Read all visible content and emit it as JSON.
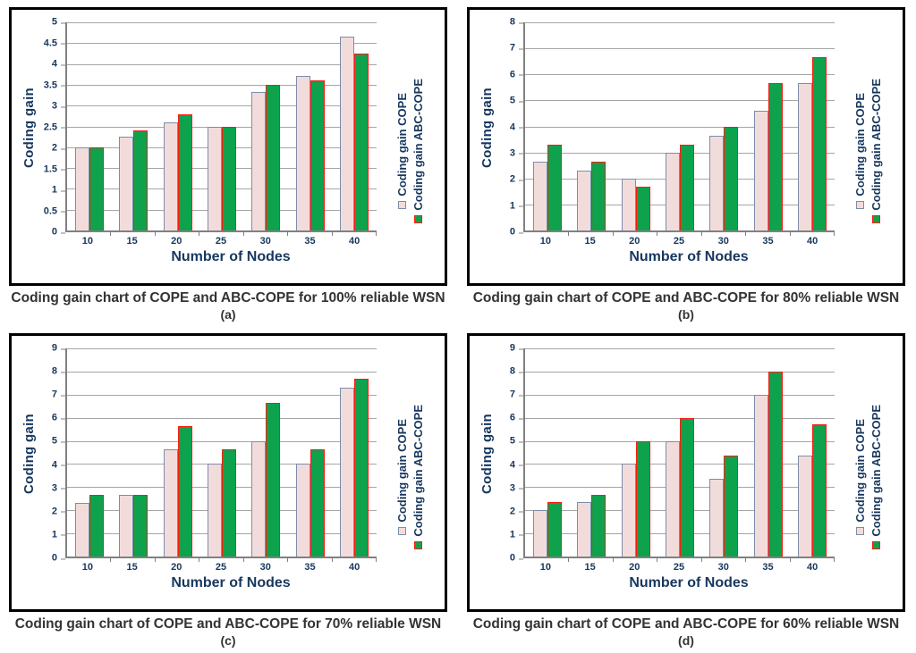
{
  "palette": {
    "axis_text": "#17375e",
    "caption_text": "#333333",
    "gridline": "#a6a6a6",
    "axis_line": "#808080",
    "panel_border": "#000000",
    "cope_fill": "#f2dcdb",
    "cope_border": "#7d8caa",
    "abccope_fill": "#0ea24d",
    "abccope_border": "#fb1c0f"
  },
  "chart_data": [
    {
      "id": "a",
      "type": "bar",
      "caption": "Coding gain chart of COPE and ABC-COPE for 100% reliable WSN",
      "sublabel": "(a)",
      "categories": [
        "10",
        "15",
        "20",
        "25",
        "30",
        "35",
        "40"
      ],
      "xlabel": "Number of Nodes",
      "ylabel": "Coding gain",
      "ylim": [
        0,
        5
      ],
      "ystep": 0.5,
      "grid": true,
      "legend_position": "right-rotated",
      "series": [
        {
          "name": "Coding gain COPE",
          "values": [
            2,
            2.25,
            2.6,
            2.5,
            3.33,
            3.72,
            4.65
          ],
          "fill": "#f2dcdb",
          "border": "#7d8caa"
        },
        {
          "name": "Coding gain ABC-COPE",
          "values": [
            2,
            2.4,
            2.8,
            2.5,
            3.5,
            3.6,
            4.25
          ],
          "fill": "#0ea24d",
          "border": "#fb1c0f"
        }
      ]
    },
    {
      "id": "b",
      "type": "bar",
      "caption": "Coding gain chart of COPE and ABC-COPE for 80% reliable WSN",
      "sublabel": "(b)",
      "categories": [
        "10",
        "15",
        "20",
        "25",
        "30",
        "35",
        "40"
      ],
      "xlabel": "Number of Nodes",
      "ylabel": "Coding gain",
      "ylim": [
        0,
        8
      ],
      "ystep": 1,
      "grid": true,
      "legend_position": "right-rotated",
      "series": [
        {
          "name": "Coding gain COPE",
          "values": [
            2.65,
            2.3,
            2,
            3,
            3.65,
            4.6,
            5.65
          ],
          "fill": "#f2dcdb",
          "border": "#7d8caa"
        },
        {
          "name": "Coding gain ABC-COPE",
          "values": [
            3.3,
            2.65,
            1.7,
            3.3,
            4,
            5.65,
            6.65
          ],
          "fill": "#0ea24d",
          "border": "#fb1c0f"
        }
      ]
    },
    {
      "id": "c",
      "type": "bar",
      "caption": "Coding gain chart of COPE and ABC-COPE for 70% reliable WSN",
      "sublabel": "(c)",
      "categories": [
        "10",
        "15",
        "20",
        "25",
        "30",
        "35",
        "40"
      ],
      "xlabel": "Number of Nodes",
      "ylabel": "Coding gain",
      "ylim": [
        0,
        9
      ],
      "ystep": 1,
      "grid": true,
      "legend_position": "right-rotated",
      "series": [
        {
          "name": "Coding gain COPE",
          "values": [
            2.3,
            2.65,
            4.65,
            4,
            5,
            4,
            7.3
          ],
          "fill": "#f2dcdb",
          "border": "#7d8caa"
        },
        {
          "name": "Coding gain ABC-COPE",
          "values": [
            2.65,
            2.65,
            5.65,
            4.65,
            6.65,
            4.65,
            7.7
          ],
          "fill": "#0ea24d",
          "border": "#fb1c0f"
        }
      ]
    },
    {
      "id": "d",
      "type": "bar",
      "caption": "Coding gain chart of COPE and ABC-COPE for 60% reliable WSN",
      "sublabel": "(d)",
      "categories": [
        "10",
        "15",
        "20",
        "25",
        "30",
        "35",
        "40"
      ],
      "xlabel": "Number of Nodes",
      "ylabel": "Coding gain",
      "ylim": [
        0,
        9
      ],
      "ystep": 1,
      "grid": true,
      "legend_position": "right-rotated",
      "series": [
        {
          "name": "Coding gain COPE",
          "values": [
            2,
            2.35,
            4,
            5,
            3.35,
            7,
            4.35
          ],
          "fill": "#f2dcdb",
          "border": "#7d8caa"
        },
        {
          "name": "Coding gain ABC-COPE",
          "values": [
            2.35,
            2.65,
            5,
            6,
            4.35,
            8,
            5.7
          ],
          "fill": "#0ea24d",
          "border": "#fb1c0f"
        }
      ]
    }
  ]
}
